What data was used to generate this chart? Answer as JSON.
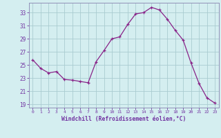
{
  "x": [
    0,
    1,
    2,
    3,
    4,
    5,
    6,
    7,
    8,
    9,
    10,
    11,
    12,
    13,
    14,
    15,
    16,
    17,
    18,
    19,
    20,
    21,
    22,
    23
  ],
  "y": [
    25.8,
    24.5,
    23.8,
    24.0,
    22.8,
    22.7,
    22.5,
    22.3,
    25.5,
    27.2,
    29.0,
    29.3,
    31.2,
    32.8,
    33.0,
    33.8,
    33.4,
    32.0,
    30.3,
    28.8,
    25.3,
    22.2,
    20.0,
    19.2
  ],
  "line_color": "#882288",
  "marker": "+",
  "marker_color": "#882288",
  "bg_color": "#d4eef0",
  "grid_color": "#aaccd0",
  "xlabel": "Windchill (Refroidissement éolien,°C)",
  "ylim": [
    18.5,
    34.5
  ],
  "xlim": [
    -0.5,
    23.5
  ],
  "yticks": [
    19,
    21,
    23,
    25,
    27,
    29,
    31,
    33
  ],
  "xticks": [
    0,
    1,
    2,
    3,
    4,
    5,
    6,
    7,
    8,
    9,
    10,
    11,
    12,
    13,
    14,
    15,
    16,
    17,
    18,
    19,
    20,
    21,
    22,
    23
  ],
  "spine_color": "#9090b8",
  "font_color": "#7030a0"
}
